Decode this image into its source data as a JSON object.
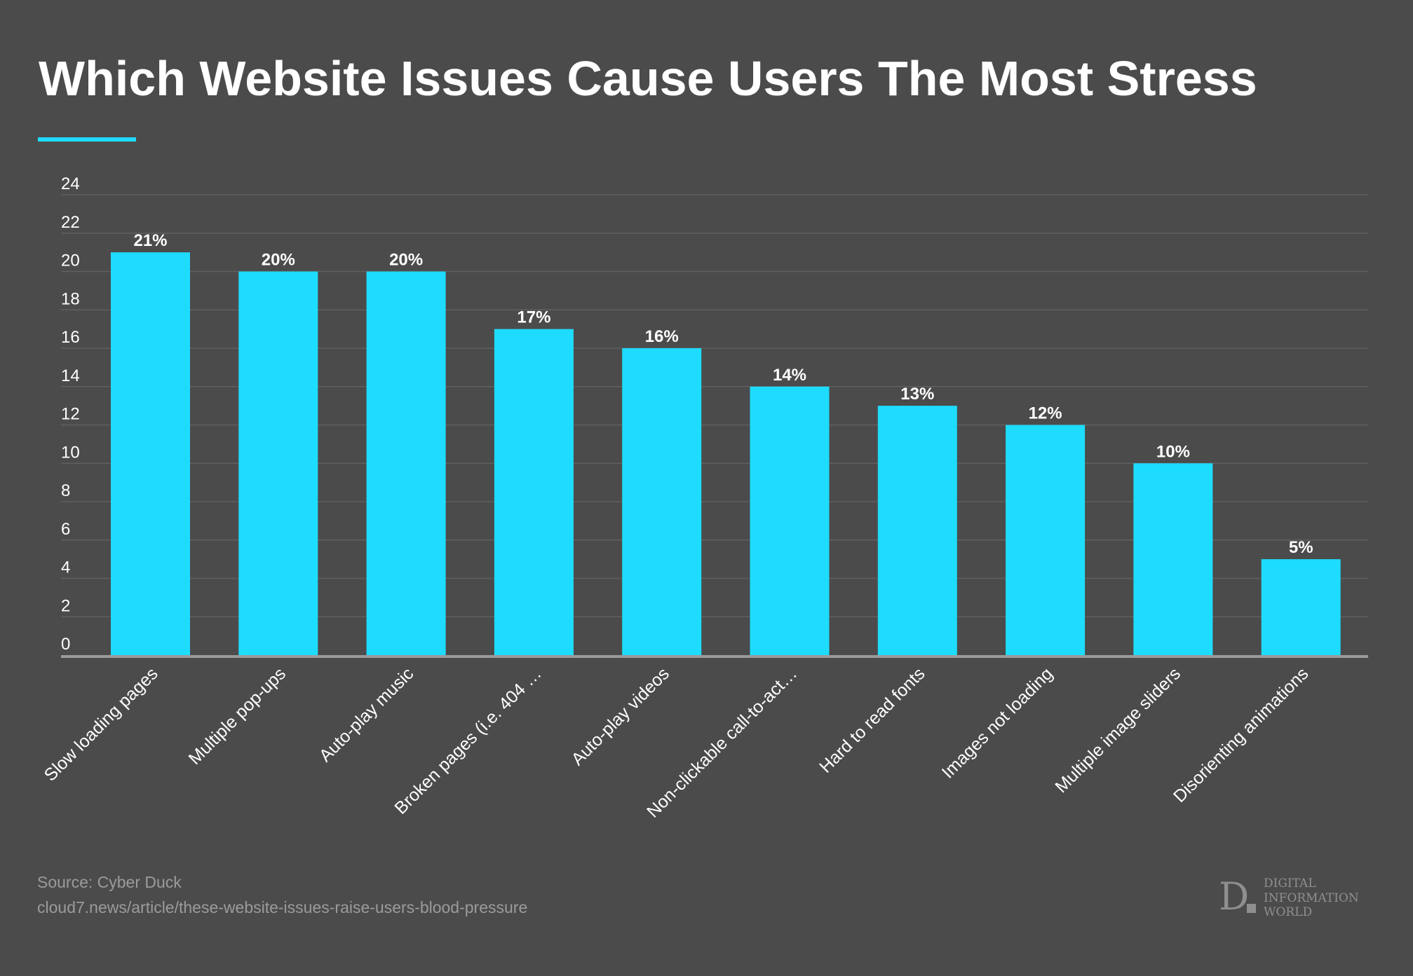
{
  "colors": {
    "background": "#4b4b4b",
    "bar": "#1edcff",
    "accent": "#1edcff",
    "grid": "#5f5f5f",
    "axis": "#9b9b9b"
  },
  "footer": {
    "source": "Source: Cyber Duck",
    "url": "cloud7.news/article/these-website-issues-raise-users-blood-pressure"
  },
  "logo": {
    "mark": "D.",
    "text": [
      "DIGITAL",
      "INFORMATION",
      "WORLD"
    ]
  },
  "chart_data": {
    "type": "bar",
    "title": "Which Website Issues Cause Users The Most Stress",
    "xlabel": "",
    "ylabel": "",
    "ylim": [
      0,
      24
    ],
    "yticks": [
      0,
      2,
      4,
      6,
      8,
      10,
      12,
      14,
      16,
      18,
      20,
      22,
      24
    ],
    "grid": true,
    "categories": [
      "Slow loading pages",
      "Multiple pop-ups",
      "Auto-play music",
      "Broken pages (i.e. 404 …",
      "Auto-play videos",
      "Non-clickable call-to-act…",
      "Hard to read fonts",
      "Images not loading",
      "Multiple image sliders",
      "Disorienting animations"
    ],
    "values": [
      21,
      20,
      20,
      17,
      16,
      14,
      13,
      12,
      10,
      5
    ],
    "data_labels": [
      "21%",
      "20%",
      "20%",
      "17%",
      "16%",
      "14%",
      "13%",
      "12%",
      "10%",
      "5%"
    ]
  }
}
